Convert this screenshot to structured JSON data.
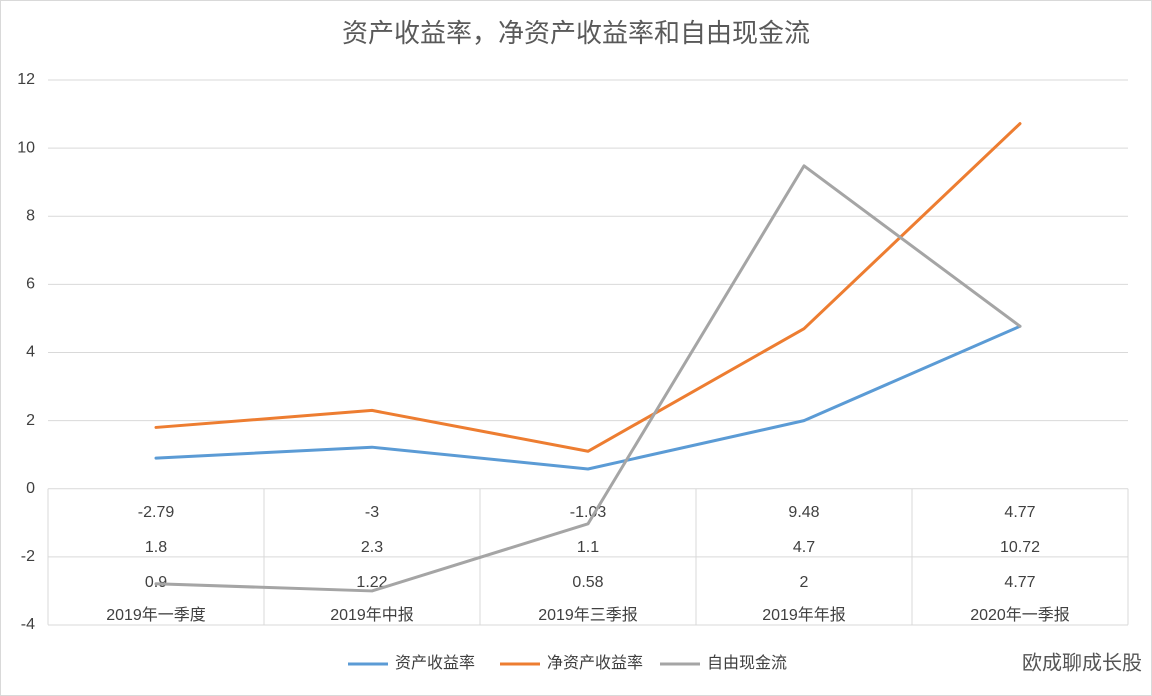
{
  "chart_data": {
    "type": "line",
    "title": "资产收益率，净资产收益率和自由现金流",
    "categories": [
      "2019年一季度",
      "2019年中报",
      "2019年三季报",
      "2019年年报",
      "2020年一季报"
    ],
    "series": [
      {
        "name": "资产收益率",
        "color": "#5b9bd5",
        "values": [
          0.9,
          1.22,
          0.58,
          2,
          4.77
        ]
      },
      {
        "name": "净资产收益率",
        "color": "#ed7d31",
        "values": [
          1.8,
          2.3,
          1.1,
          4.7,
          10.72
        ]
      },
      {
        "name": "自由现金流",
        "color": "#a5a5a5",
        "values": [
          -2.79,
          -3,
          -1.03,
          9.48,
          4.77
        ]
      }
    ],
    "ylim": [
      -4,
      12
    ],
    "yticks": [
      -4,
      -2,
      0,
      2,
      4,
      6,
      8,
      10,
      12
    ],
    "grid": true,
    "legend": "bottom"
  },
  "watermark": "欧成聊成长股"
}
